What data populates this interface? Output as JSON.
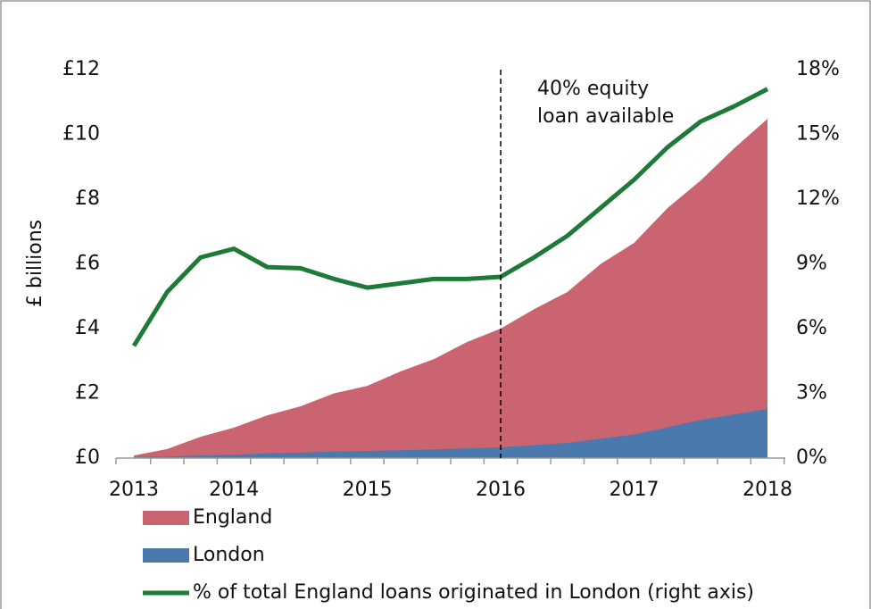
{
  "chart_data": {
    "type": "area",
    "y_label": "£ billions",
    "annotation": [
      "40% equity",
      "loan available"
    ],
    "categories": [
      "2013",
      null,
      null,
      "2014",
      null,
      null,
      null,
      "2015",
      null,
      null,
      null,
      "2016",
      null,
      null,
      null,
      "2017",
      null,
      null,
      null,
      "2018"
    ],
    "series": [
      {
        "name": "England",
        "color": "#c96470",
        "values": [
          0.08,
          0.28,
          0.66,
          0.94,
          1.32,
          1.6,
          2.0,
          2.23,
          2.68,
          3.06,
          3.59,
          4.0,
          4.6,
          5.13,
          6.0,
          6.65,
          7.72,
          8.58,
          9.57,
          10.48
        ]
      },
      {
        "name": "London",
        "color": "#4a7aad",
        "values": [
          0.03,
          0.05,
          0.08,
          0.1,
          0.15,
          0.17,
          0.2,
          0.22,
          0.24,
          0.27,
          0.3,
          0.33,
          0.4,
          0.47,
          0.6,
          0.73,
          0.95,
          1.18,
          1.35,
          1.52
        ]
      },
      {
        "name": "% of total England loans originated in London (right axis)",
        "color": "#1e7a38",
        "axis": "y2",
        "type": "line",
        "values": [
          5.2,
          7.7,
          9.3,
          9.7,
          8.85,
          8.8,
          8.3,
          7.9,
          8.1,
          8.3,
          8.3,
          8.4,
          9.3,
          10.3,
          11.6,
          12.9,
          14.4,
          15.6,
          16.3,
          17.1
        ]
      }
    ],
    "ylim": [
      0,
      12
    ],
    "yticks": [
      {
        "value": 0,
        "label": "£0"
      },
      {
        "value": 2,
        "label": "£2"
      },
      {
        "value": 4,
        "label": "£4"
      },
      {
        "value": 6,
        "label": "£6"
      },
      {
        "value": 8,
        "label": "£8"
      },
      {
        "value": 10,
        "label": "£10"
      },
      {
        "value": 12,
        "label": "£12"
      }
    ],
    "y2lim": [
      0,
      18
    ],
    "y2ticks": [
      {
        "value": 0,
        "label": "0%"
      },
      {
        "value": 3,
        "label": "3%"
      },
      {
        "value": 6,
        "label": "6%"
      },
      {
        "value": 9,
        "label": "9%"
      },
      {
        "value": 12,
        "label": "12%"
      },
      {
        "value": 15,
        "label": "15%"
      },
      {
        "value": 18,
        "label": "18%"
      }
    ],
    "grid": false
  }
}
